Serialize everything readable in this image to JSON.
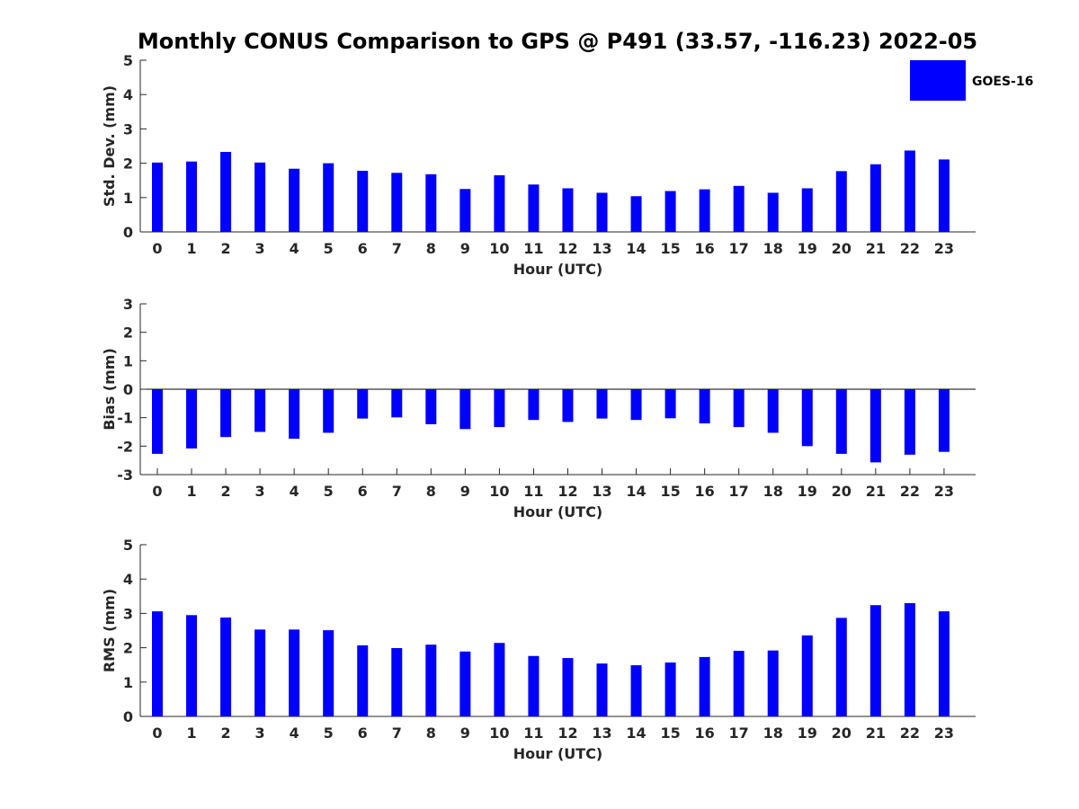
{
  "colors": {
    "bar": "#0000ff",
    "axis": "#262626",
    "background": "#ffffff"
  },
  "chart_data": [
    {
      "type": "bar",
      "title": "Monthly CONUS Comparison to GPS @ P491 (33.57, -116.23) 2022-05",
      "xlabel": "Hour (UTC)",
      "ylabel": "Std. Dev. (mm)",
      "ylim": [
        0,
        5
      ],
      "yticks": [
        0,
        1,
        2,
        3,
        4,
        5
      ],
      "categories": [
        "0",
        "1",
        "2",
        "3",
        "4",
        "5",
        "6",
        "7",
        "8",
        "9",
        "10",
        "11",
        "12",
        "13",
        "14",
        "15",
        "16",
        "17",
        "18",
        "19",
        "20",
        "21",
        "22",
        "23"
      ],
      "series": [
        {
          "name": "GOES-16",
          "values": [
            2.02,
            2.05,
            2.33,
            2.02,
            1.84,
            2.0,
            1.78,
            1.72,
            1.68,
            1.25,
            1.65,
            1.38,
            1.27,
            1.14,
            1.04,
            1.19,
            1.24,
            1.34,
            1.14,
            1.27,
            1.77,
            1.97,
            2.37,
            2.11
          ]
        }
      ],
      "legend": {
        "entries": [
          "GOES-16"
        ],
        "placement": "top-right"
      },
      "grid": false
    },
    {
      "type": "bar",
      "xlabel": "Hour (UTC)",
      "ylabel": "Bias (mm)",
      "ylim": [
        -3,
        3
      ],
      "yticks": [
        -3,
        -2,
        -1,
        0,
        1,
        2,
        3
      ],
      "categories": [
        "0",
        "1",
        "2",
        "3",
        "4",
        "5",
        "6",
        "7",
        "8",
        "9",
        "10",
        "11",
        "12",
        "13",
        "14",
        "15",
        "16",
        "17",
        "18",
        "19",
        "20",
        "21",
        "22",
        "23"
      ],
      "series": [
        {
          "name": "GOES-16",
          "values": [
            -2.27,
            -2.08,
            -1.68,
            -1.5,
            -1.74,
            -1.53,
            -1.03,
            -0.99,
            -1.23,
            -1.4,
            -1.33,
            -1.08,
            -1.15,
            -1.03,
            -1.08,
            -1.02,
            -1.2,
            -1.33,
            -1.53,
            -2.0,
            -2.27,
            -2.57,
            -2.3,
            -2.2
          ]
        }
      ],
      "grid": false
    },
    {
      "type": "bar",
      "xlabel": "Hour (UTC)",
      "ylabel": "RMS (mm)",
      "ylim": [
        0,
        5
      ],
      "yticks": [
        0,
        1,
        2,
        3,
        4,
        5
      ],
      "categories": [
        "0",
        "1",
        "2",
        "3",
        "4",
        "5",
        "6",
        "7",
        "8",
        "9",
        "10",
        "11",
        "12",
        "13",
        "14",
        "15",
        "16",
        "17",
        "18",
        "19",
        "20",
        "21",
        "22",
        "23"
      ],
      "series": [
        {
          "name": "GOES-16",
          "values": [
            3.06,
            2.95,
            2.88,
            2.53,
            2.53,
            2.51,
            2.07,
            1.99,
            2.09,
            1.89,
            2.14,
            1.76,
            1.7,
            1.54,
            1.49,
            1.57,
            1.73,
            1.91,
            1.92,
            2.36,
            2.87,
            3.24,
            3.3,
            3.06
          ]
        }
      ],
      "grid": false
    }
  ]
}
